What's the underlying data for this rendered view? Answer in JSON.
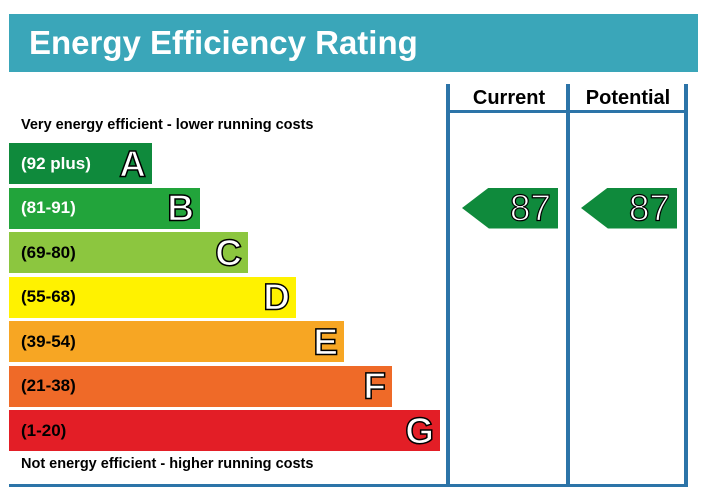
{
  "title": "Energy Efficiency Rating",
  "captions": {
    "top": "Very energy efficient - lower running costs",
    "bottom": "Not energy efficient - higher running costs"
  },
  "columns": {
    "current": "Current",
    "potential": "Potential"
  },
  "chart_data": {
    "type": "bar",
    "title": "Energy Efficiency Rating",
    "categories": [
      "A",
      "B",
      "C",
      "D",
      "E",
      "F",
      "G"
    ],
    "bands": [
      {
        "letter": "A",
        "range": "(92 plus)",
        "color": "#0f8a3c",
        "text_color": "#ffffff"
      },
      {
        "letter": "B",
        "range": "(81-91)",
        "color": "#22a43b",
        "text_color": "#ffffff"
      },
      {
        "letter": "C",
        "range": "(69-80)",
        "color": "#8cc63f",
        "text_color": "#000000"
      },
      {
        "letter": "D",
        "range": "(55-68)",
        "color": "#fff200",
        "text_color": "#000000"
      },
      {
        "letter": "E",
        "range": "(39-54)",
        "color": "#f7a623",
        "text_color": "#000000"
      },
      {
        "letter": "F",
        "range": "(21-38)",
        "color": "#ef6a28",
        "text_color": "#000000"
      },
      {
        "letter": "G",
        "range": "(1-20)",
        "color": "#e31e26",
        "text_color": "#000000"
      }
    ],
    "current": {
      "value": 87,
      "band": "B",
      "color": "#0f8a3c"
    },
    "potential": {
      "value": 87,
      "band": "B",
      "color": "#0f8a3c"
    }
  },
  "colors": {
    "header": "#3aa6b9",
    "frame": "#2c74a8"
  }
}
